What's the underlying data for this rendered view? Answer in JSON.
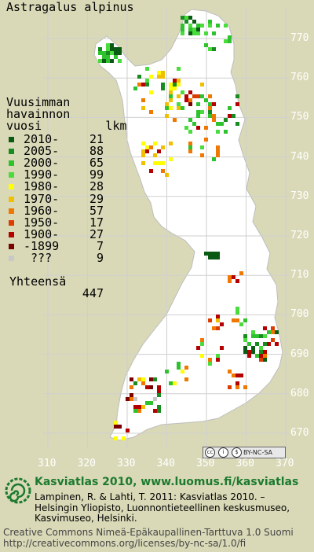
{
  "title": "Astragalus alpinus",
  "legend": {
    "heading": [
      "Vuusimman",
      "havainnon",
      "vuosi         lkm"
    ],
    "rows": [
      {
        "label": "2010-",
        "count": "21",
        "color": "#0a5a14"
      },
      {
        "label": "2005-",
        "count": "88",
        "color": "#188c20"
      },
      {
        "label": "2000-",
        "count": "65",
        "color": "#2ec22e"
      },
      {
        "label": "1990-",
        "count": "99",
        "color": "#4adc3c"
      },
      {
        "label": "1980-",
        "count": "28",
        "color": "#ffff00"
      },
      {
        "label": "1970-",
        "count": "29",
        "color": "#f0c000"
      },
      {
        "label": "1960-",
        "count": "57",
        "color": "#f07800"
      },
      {
        "label": "1950-",
        "count": "17",
        "color": "#dc3c00"
      },
      {
        "label": "1900-",
        "count": "27",
        "color": "#b40000"
      },
      {
        "label": "-1899",
        "count": "7",
        "color": "#780000"
      },
      {
        "label": " ???",
        "count": "9",
        "color": "#c8c8c8"
      }
    ],
    "total_label": "Yhteensä",
    "total_count": "447"
  },
  "y_ticks": [
    "770",
    "760",
    "750",
    "740",
    "730",
    "720",
    "710",
    "700",
    "690",
    "680",
    "670"
  ],
  "x_ticks": [
    "310",
    "320",
    "330",
    "340",
    "350",
    "360",
    "370"
  ],
  "license_badge": "BY-NC-SA",
  "footer": {
    "atlas": "Kasviatlas 2010, www.luomus.fi/kasviatlas",
    "citation": "Lampinen, R. & Lahti, T. 2011: Kasviatlas 2010. – Helsingin Yliopisto, Luonnontieteellinen keskusmuseo, Kasvimuseo, Helsinki.",
    "cc_line1": "Creative Commons Nimeä-Epäkaupallinen-Tarttuva 1.0 Suomi",
    "cc_line2": "http://creativecommons.org/licenses/by-nc-sa/1.0/fi"
  },
  "colors": {
    "background": "#d9d9b8",
    "land": "#ffffff",
    "grid": "#d0d0d0",
    "brand_green": "#1c7a2e"
  }
}
